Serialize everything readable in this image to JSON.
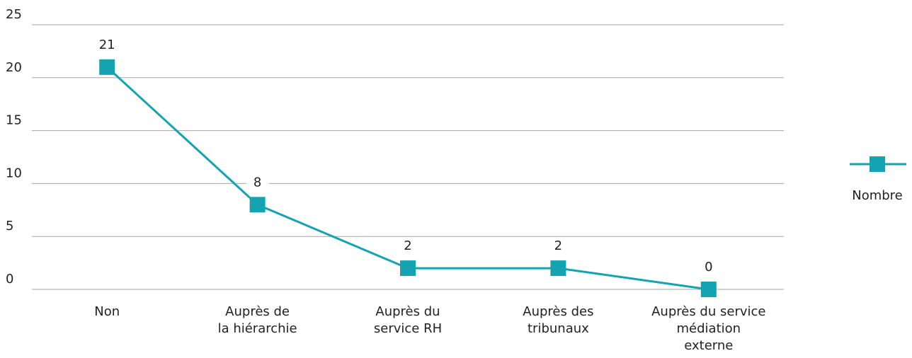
{
  "chart_data": {
    "type": "line",
    "categories": [
      "Non",
      "Auprès de\nla hiérarchie",
      "Auprès du\nservice RH",
      "Auprès des\ntribunaux",
      "Auprès du service\nmédiation\nexterne"
    ],
    "series": [
      {
        "name": "Nombre",
        "color": "#13a3b1",
        "values": [
          21,
          8,
          2,
          2,
          0
        ]
      }
    ],
    "ylim": [
      0,
      25
    ],
    "yticks": [
      0,
      5,
      10,
      15,
      20,
      25
    ],
    "grid": true,
    "legend": "right"
  }
}
